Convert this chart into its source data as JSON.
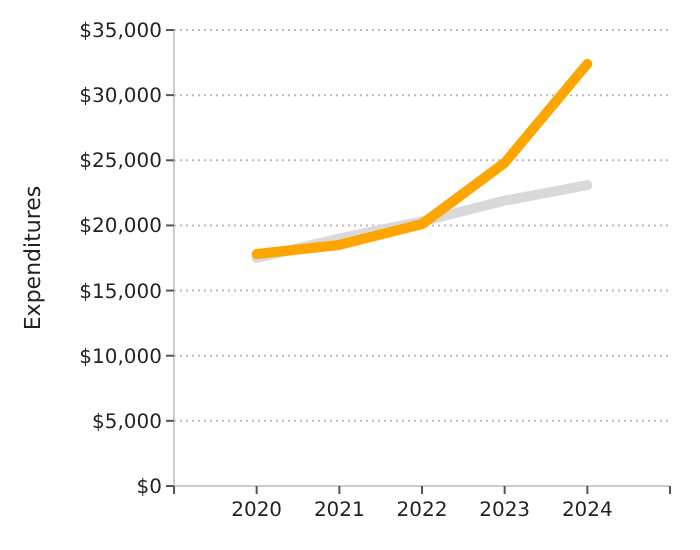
{
  "chart_data": {
    "type": "line",
    "ylabel": "Expenditures",
    "x": [
      2020,
      2021,
      2022,
      2023,
      2024
    ],
    "series": [
      {
        "color": "#d9d9d9",
        "values": [
          17500,
          19000,
          20300,
          21900,
          23100
        ]
      },
      {
        "color": "#ffa500",
        "values": [
          17800,
          18500,
          20100,
          24800,
          32400
        ]
      }
    ],
    "xlim": [
      2019,
      2025
    ],
    "xticks": [
      {
        "value": 2019,
        "label": null
      },
      2020,
      2021,
      2022,
      2023,
      2024,
      {
        "value": 2025,
        "label": null
      }
    ],
    "ylim": [
      0,
      35000
    ],
    "yticks": [
      {
        "value": 0,
        "label": "$0"
      },
      {
        "value": 5000,
        "label": "$5,000"
      },
      {
        "value": 10000,
        "label": "$10,000"
      },
      {
        "value": 15000,
        "label": "$15,000"
      },
      {
        "value": 20000,
        "label": "$20,000"
      },
      {
        "value": 25000,
        "label": "$25,000"
      },
      {
        "value": 30000,
        "label": "$30,000"
      },
      {
        "value": 35000,
        "label": "$35,000"
      }
    ],
    "grid": "y",
    "marker": "none",
    "line_style": "solid"
  }
}
